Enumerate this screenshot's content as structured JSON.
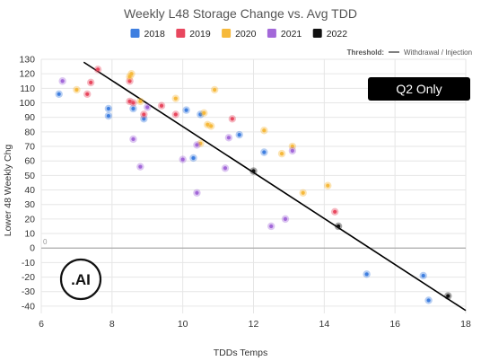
{
  "colors": {
    "2018": "#3f7fe0",
    "2019": "#e8475e",
    "2020": "#f6b93b",
    "2021": "#a368d9",
    "2022": "#111111",
    "threshold": "#000000",
    "zero_line": "#aaaaaa",
    "grid": "#e6e6e6",
    "badge_bg": "#000000"
  },
  "badge": {
    "label": "Q2 Only"
  },
  "threshold_legend": {
    "title": "Threshold:",
    "label": "Withdrawal / Injection"
  },
  "zero_note": "0",
  "logo": {
    "text": ".AI"
  },
  "chart_data": {
    "type": "scatter",
    "title": "Weekly L48 Storage Change vs. Avg TDD",
    "xlabel": "TDDs Temps",
    "ylabel": "Lower 48 Weekly Chg",
    "xlim": [
      6,
      18
    ],
    "ylim": [
      -45,
      130
    ],
    "xticks": [
      "6",
      "8",
      "10",
      "12",
      "14",
      "16",
      "18"
    ],
    "yticks": [
      "130",
      "120",
      "110",
      "100",
      "90",
      "80",
      "70",
      "60",
      "50",
      "40",
      "30",
      "20",
      "10",
      "0",
      "-10",
      "-20",
      "-30",
      "-40"
    ],
    "grid": true,
    "legend_position": "top",
    "threshold_line": {
      "x": [
        7.2,
        18
      ],
      "y": [
        128,
        -43
      ]
    },
    "series": [
      {
        "name": "2018",
        "points": [
          [
            6.5,
            106
          ],
          [
            7.9,
            96
          ],
          [
            7.9,
            91
          ],
          [
            8.6,
            96
          ],
          [
            8.9,
            89
          ],
          [
            10.1,
            95
          ],
          [
            10.5,
            92
          ],
          [
            10.3,
            62
          ],
          [
            11.6,
            78
          ],
          [
            12.3,
            66
          ],
          [
            15.2,
            -18
          ],
          [
            16.8,
            -19
          ],
          [
            16.95,
            -36
          ]
        ]
      },
      {
        "name": "2019",
        "points": [
          [
            7.3,
            106
          ],
          [
            7.4,
            114
          ],
          [
            7.6,
            123
          ],
          [
            8.5,
            115
          ],
          [
            8.5,
            101
          ],
          [
            8.6,
            100
          ],
          [
            8.9,
            92
          ],
          [
            9.4,
            98
          ],
          [
            9.8,
            92
          ],
          [
            11.4,
            89
          ],
          [
            14.3,
            25
          ]
        ]
      },
      {
        "name": "2020",
        "points": [
          [
            7.0,
            109
          ],
          [
            8.5,
            118
          ],
          [
            8.55,
            120
          ],
          [
            8.8,
            101
          ],
          [
            9.8,
            103
          ],
          [
            10.6,
            93
          ],
          [
            10.7,
            85
          ],
          [
            10.8,
            84
          ],
          [
            10.9,
            109
          ],
          [
            10.5,
            72
          ],
          [
            12.3,
            81
          ],
          [
            12.8,
            65
          ],
          [
            13.1,
            70
          ],
          [
            13.4,
            38
          ],
          [
            14.1,
            43
          ]
        ]
      },
      {
        "name": "2021",
        "points": [
          [
            6.6,
            115
          ],
          [
            8.6,
            75
          ],
          [
            8.8,
            56
          ],
          [
            9.0,
            97
          ],
          [
            10.0,
            61
          ],
          [
            10.4,
            71
          ],
          [
            10.4,
            38
          ],
          [
            11.2,
            55
          ],
          [
            11.3,
            76
          ],
          [
            12.5,
            15
          ],
          [
            12.9,
            20
          ],
          [
            13.1,
            67
          ]
        ]
      },
      {
        "name": "2022",
        "points": [
          [
            12.0,
            53
          ],
          [
            14.4,
            15
          ],
          [
            17.5,
            -33
          ]
        ]
      }
    ]
  }
}
